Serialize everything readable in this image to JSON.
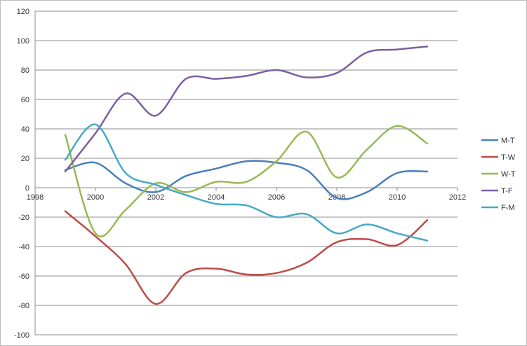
{
  "chart_data": {
    "type": "line",
    "title": "",
    "xlabel": "",
    "ylabel": "",
    "xlim": [
      1998,
      2012
    ],
    "ylim": [
      -100,
      120
    ],
    "x_ticks": [
      1998,
      2000,
      2002,
      2004,
      2006,
      2008,
      2010,
      2012
    ],
    "y_ticks": [
      -100,
      -80,
      -60,
      -40,
      -20,
      0,
      20,
      40,
      60,
      80,
      100,
      120
    ],
    "grid": "horizontal",
    "legend_position": "right",
    "smooth": true,
    "x": [
      1999,
      2000,
      2001,
      2002,
      2003,
      2004,
      2005,
      2006,
      2007,
      2008,
      2009,
      2010,
      2011
    ],
    "series": [
      {
        "name": "M-T",
        "color": "#4a7ebb",
        "values": [
          12,
          17,
          3,
          -3,
          8,
          13,
          18,
          17,
          12,
          -7,
          -3,
          10,
          11
        ]
      },
      {
        "name": "T-W",
        "color": "#be4b48",
        "values": [
          -16,
          -33,
          -52,
          -79,
          -58,
          -55,
          -59,
          -58,
          -51,
          -37,
          -35,
          -39,
          -22
        ]
      },
      {
        "name": "W-T",
        "color": "#98b954",
        "values": [
          36,
          -31,
          -15,
          3,
          -3,
          4,
          4,
          18,
          38,
          7,
          26,
          42,
          30
        ]
      },
      {
        "name": "T-F",
        "color": "#7d60a0",
        "values": [
          11,
          37,
          64,
          49,
          74,
          74,
          76,
          80,
          75,
          78,
          92,
          94,
          96
        ]
      },
      {
        "name": "F-M",
        "color": "#46aac5",
        "values": [
          19,
          43,
          10,
          2,
          -5,
          -11,
          -12,
          -20,
          -18,
          -31,
          -25,
          -31,
          -36
        ]
      }
    ]
  }
}
